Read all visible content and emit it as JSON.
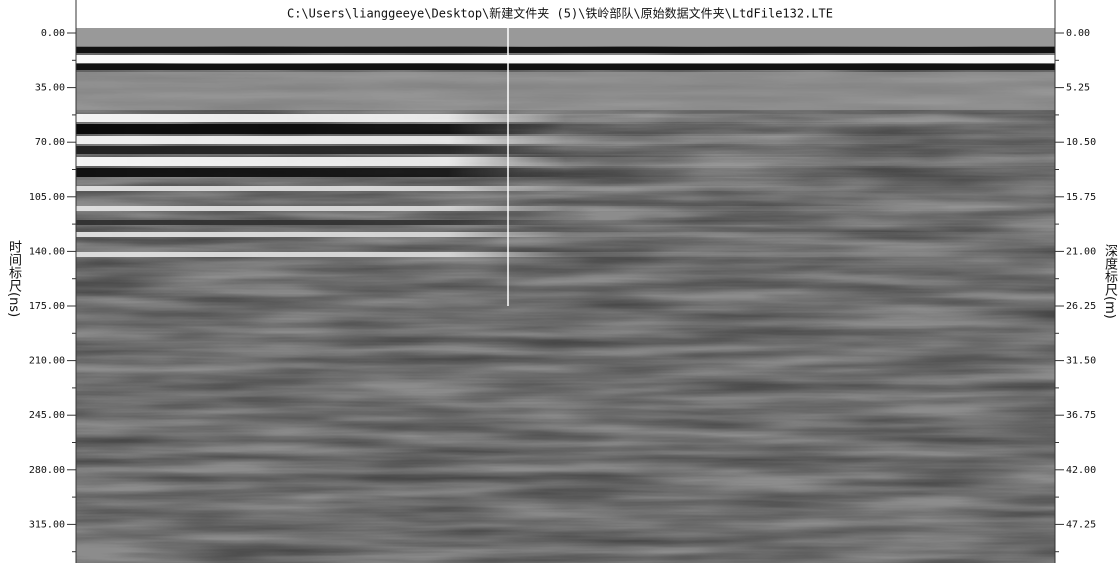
{
  "title": "C:\\Users\\lianggeeye\\Desktop\\新建文件夹 (5)\\铁岭部队\\原始数据文件夹\\LtdFile132.LTE",
  "left_axis": {
    "label": "时间标尺(ns)",
    "ticks": [
      "0.00",
      "35.00",
      "70.00",
      "105.00",
      "140.00",
      "175.00",
      "210.00",
      "245.00",
      "280.00",
      "315.00"
    ]
  },
  "right_axis": {
    "label": "深度标尺(m)",
    "ticks": [
      "0.00",
      "5.25",
      "10.50",
      "15.75",
      "21.00",
      "26.25",
      "31.50",
      "36.75",
      "42.00",
      "47.25"
    ]
  }
}
